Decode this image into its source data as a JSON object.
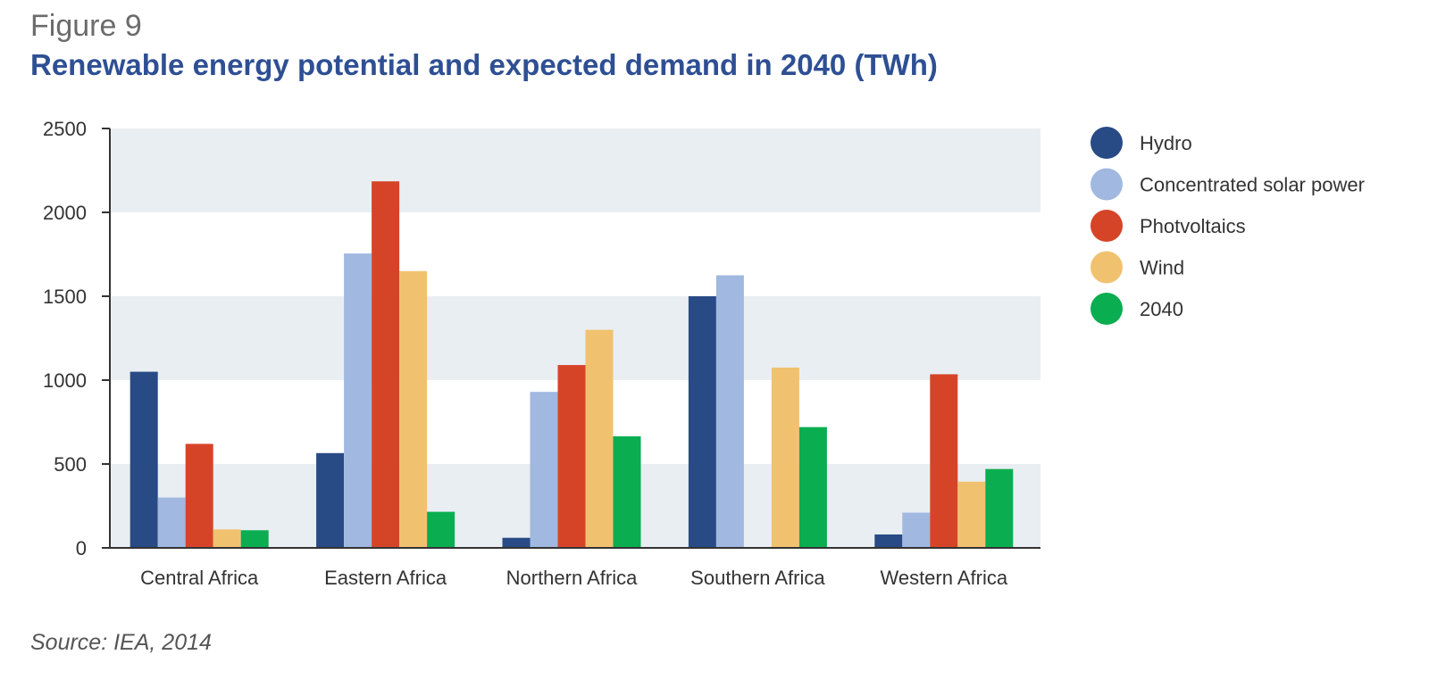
{
  "figure": {
    "label": "Figure 9",
    "title": "Renewable energy potential and expected demand in 2040 (TWh)",
    "source": "Source: IEA, 2014"
  },
  "colors": {
    "band": "#e9eef2",
    "axis": "#333333",
    "text": "#333333"
  },
  "chart_data": {
    "type": "bar",
    "title": "Renewable energy potential and expected demand in 2040 (TWh)",
    "xlabel": "",
    "ylabel": "",
    "ylim": [
      0,
      2500
    ],
    "yticks": [
      0,
      500,
      1000,
      1500,
      2000,
      2500
    ],
    "grid": "alternating horizontal bands",
    "legend_position": "right",
    "categories": [
      "Central Africa",
      "Eastern Africa",
      "Northern Africa",
      "Southern Africa",
      "Western Africa"
    ],
    "series": [
      {
        "name": "Hydro",
        "color": "#284a85",
        "values": [
          1050,
          565,
          60,
          1500,
          80
        ]
      },
      {
        "name": "Concentrated solar power",
        "color": "#a1b8e0",
        "values": [
          300,
          1755,
          930,
          1625,
          210
        ]
      },
      {
        "name": "Photvoltaics",
        "color": "#d64428",
        "values": [
          620,
          2185,
          1090,
          0,
          1035
        ]
      },
      {
        "name": "Wind",
        "color": "#f0c270",
        "values": [
          110,
          1650,
          1300,
          1075,
          395
        ]
      },
      {
        "name": "2040",
        "color": "#0aad50",
        "values": [
          105,
          215,
          665,
          720,
          470
        ]
      }
    ]
  }
}
